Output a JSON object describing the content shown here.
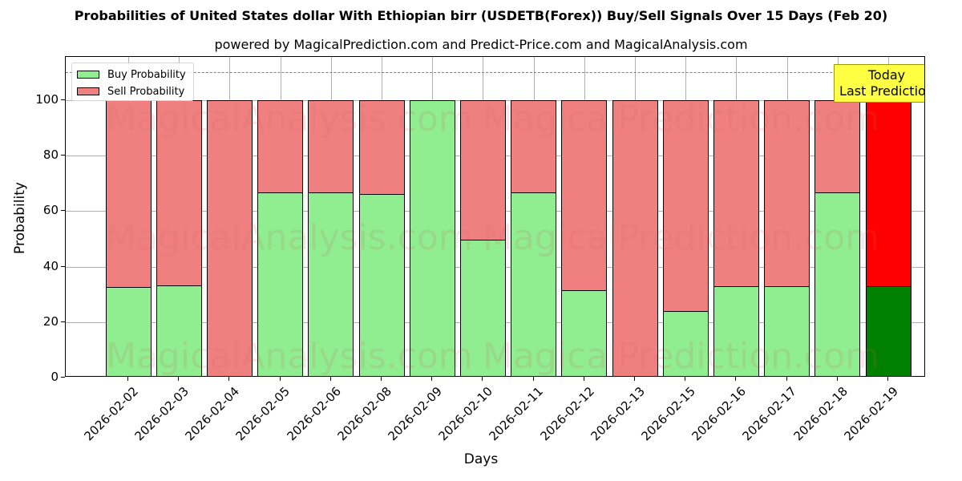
{
  "title": "Probabilities of United States dollar With Ethiopian birr (USDETB(Forex)) Buy/Sell Signals Over 15 Days (Feb 20)",
  "subtitle": "powered by MagicalPrediction.com and Predict-Price.com and MagicalAnalysis.com",
  "legend": {
    "buy_label": "Buy Probability",
    "sell_label": "Sell Probability"
  },
  "annotation": {
    "line1": "Today",
    "line2": "Last Prediction"
  },
  "watermarks": [
    "MagicalAnalysis.com",
    "MagicalPrediction.com"
  ],
  "colors": {
    "buy": "#90ee90",
    "sell": "#f08080",
    "today_buy": "#008000",
    "today_sell": "#ff0000",
    "annotation_bg": "#ffff44"
  },
  "chart_data": {
    "type": "bar",
    "stacked": true,
    "title": "Probabilities of United States dollar With Ethiopian birr (USDETB(Forex)) Buy/Sell Signals Over 15 Days (Feb 20)",
    "subtitle": "powered by MagicalPrediction.com and Predict-Price.com and MagicalAnalysis.com",
    "xlabel": "Days",
    "ylabel": "Probability",
    "ylim": [
      0,
      115
    ],
    "yticks": [
      0,
      20,
      40,
      60,
      80,
      100
    ],
    "reference_line": 110,
    "grid": true,
    "legend_position": "upper left",
    "categories": [
      "2026-02-02",
      "2026-02-03",
      "2026-02-04",
      "2026-02-05",
      "2026-02-06",
      "2026-02-08",
      "2026-02-09",
      "2026-02-10",
      "2026-02-11",
      "2026-02-12",
      "2026-02-13",
      "2026-02-15",
      "2026-02-16",
      "2026-02-17",
      "2026-02-18",
      "2026-02-19"
    ],
    "series": [
      {
        "name": "Buy Probability",
        "values": [
          32.8,
          33.4,
          0,
          67,
          67,
          66.4,
          100,
          50,
          67,
          31.7,
          0,
          24,
          33,
          33,
          67,
          33
        ]
      },
      {
        "name": "Sell Probability",
        "values": [
          67.2,
          66.6,
          100,
          33,
          33,
          33.6,
          0,
          50,
          33,
          68.3,
          100,
          76,
          67,
          67,
          33,
          67
        ]
      }
    ],
    "highlight_last": "Today / Last Prediction"
  }
}
